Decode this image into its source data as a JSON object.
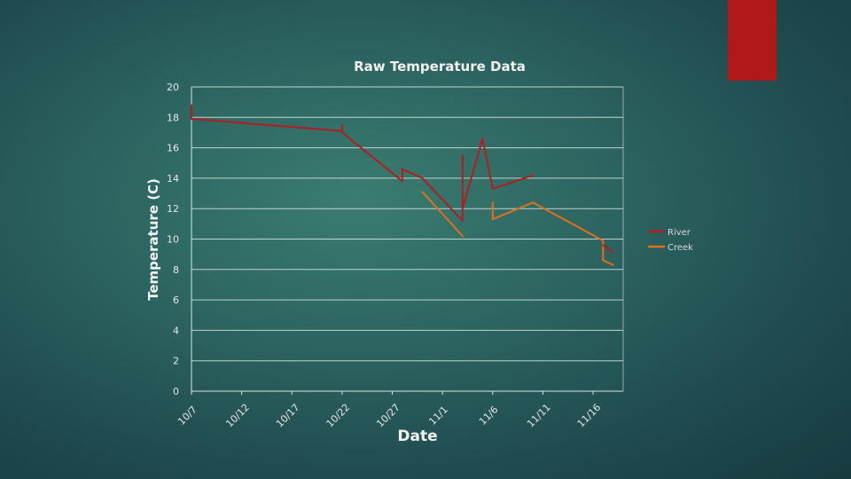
{
  "colors": {
    "accent": "#b0191a",
    "background": "#2c6360",
    "river": "#b01e22",
    "creek": "#e0701e",
    "grid": "#d9e6e3",
    "text": "#f2f2f2"
  },
  "chart_data": {
    "type": "line",
    "title": "Raw Temperature Data",
    "xlabel": "Date",
    "ylabel": "Temperature (C)",
    "ylim": [
      0,
      20
    ],
    "yticks": [
      "0",
      "2",
      "4",
      "6",
      "8",
      "10",
      "12",
      "14",
      "16",
      "18",
      "20"
    ],
    "xlim": [
      "10/7",
      "11/19"
    ],
    "xticks": [
      "10/7",
      "10/12",
      "10/17",
      "10/22",
      "10/27",
      "11/1",
      "11/6",
      "11/11",
      "11/16"
    ],
    "grid": true,
    "legend_position": "right",
    "series": [
      {
        "name": "River",
        "color": "#b01e22",
        "points": [
          [
            "10/7",
            18.8
          ],
          [
            "10/7",
            17.9
          ],
          [
            "10/22",
            17.1
          ],
          [
            "10/22",
            17.5
          ],
          [
            "10/22",
            17.0
          ],
          [
            "10/28",
            13.8
          ],
          [
            "10/28",
            14.6
          ],
          [
            "10/30",
            14.0
          ],
          [
            "11/3",
            11.2
          ],
          [
            "11/3",
            15.5
          ],
          [
            "11/3",
            12.0
          ],
          [
            "11/5",
            16.6
          ],
          [
            "11/6",
            13.3
          ],
          [
            "11/10",
            14.2
          ]
        ]
      },
      {
        "name": "Creek",
        "color": "#e0701e",
        "points": [
          [
            "10/30",
            13.1
          ],
          [
            "11/3",
            10.2
          ]
        ]
      },
      {
        "name": "Creek",
        "color": "#e0701e",
        "points": [
          [
            "11/6",
            12.4
          ],
          [
            "11/6",
            11.3
          ],
          [
            "11/10",
            12.4
          ],
          [
            "11/17",
            9.9
          ],
          [
            "11/17",
            8.6
          ],
          [
            "11/18",
            8.3
          ]
        ]
      },
      {
        "name": "River",
        "color": "#b01e22",
        "points": [
          [
            "11/17",
            9.6
          ],
          [
            "11/18",
            9.1
          ]
        ]
      }
    ]
  }
}
